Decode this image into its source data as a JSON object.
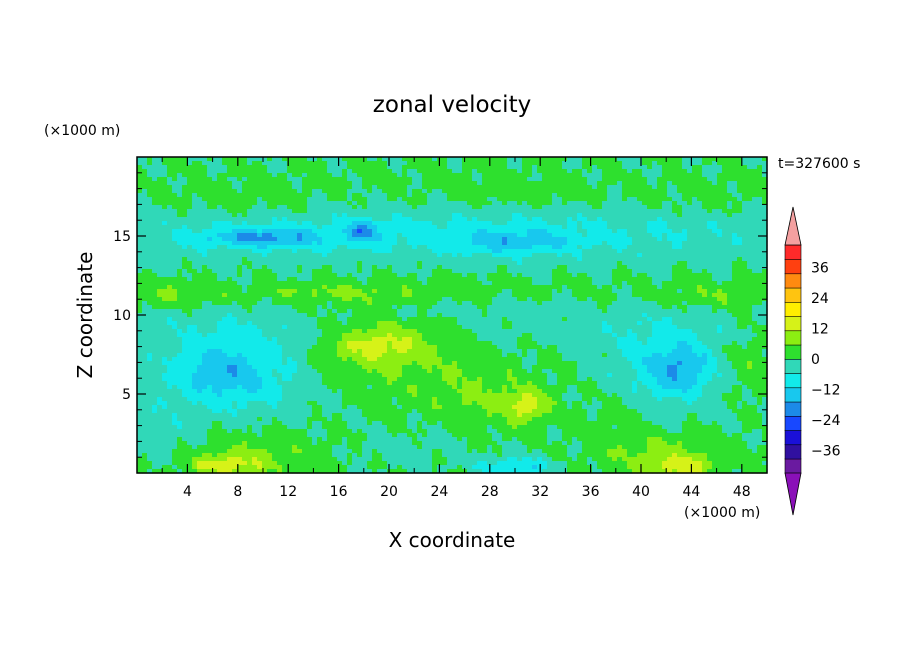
{
  "chart_data": {
    "type": "heatmap",
    "title": "zonal velocity",
    "xlabel": "X coordinate",
    "ylabel": "Z coordinate",
    "x_unit": "(×1000 m)",
    "z_unit": "(×1000 m)",
    "time_label": "t=327600 s",
    "xlim": [
      0,
      50
    ],
    "ylim": [
      0,
      20
    ],
    "x_ticks": [
      "4",
      "8",
      "12",
      "16",
      "20",
      "24",
      "28",
      "32",
      "36",
      "40",
      "44",
      "48"
    ],
    "y_ticks": [
      "5",
      "10",
      "15"
    ],
    "colorbar": {
      "tick_labels": [
        "36",
        "24",
        "12",
        "0",
        "−12",
        "−24",
        "−36"
      ],
      "levels": [
        -42,
        -36,
        -30,
        -24,
        -18,
        -12,
        -6,
        0,
        6,
        12,
        18,
        24,
        30,
        36,
        42
      ],
      "colors": [
        "#6a1aa0",
        "#3010a0",
        "#1a10d8",
        "#1848ff",
        "#1c8ae8",
        "#18c8ee",
        "#12eaea",
        "#30d8b8",
        "#2ee02e",
        "#8cee12",
        "#d6f218",
        "#ffee00",
        "#ffc410",
        "#ff8a10",
        "#ff4010",
        "#ff2a2a"
      ],
      "over_color": "#f4a0a0",
      "under_color": "#8a10b8"
    },
    "blobs": [
      {
        "x": 25,
        "z": 18.5,
        "rx": 30,
        "rz": 1.6,
        "v": 1
      },
      {
        "x": 8,
        "z": 17.2,
        "rx": 6,
        "rz": 1.2,
        "v": 3
      },
      {
        "x": 30,
        "z": 17.6,
        "rx": 6,
        "rz": 1,
        "v": 3
      },
      {
        "x": 45,
        "z": 17.4,
        "rx": 5,
        "rz": 1,
        "v": 2
      },
      {
        "x": 25,
        "z": 15.1,
        "rx": 30,
        "rz": 1.7,
        "v": -8
      },
      {
        "x": 10,
        "z": 14.9,
        "rx": 5,
        "rz": 0.6,
        "v": -14
      },
      {
        "x": 18,
        "z": 15.3,
        "rx": 1.3,
        "rz": 0.6,
        "v": -14
      },
      {
        "x": 30,
        "z": 14.6,
        "rx": 4,
        "rz": 0.7,
        "v": -10
      },
      {
        "x": 25,
        "z": 11.6,
        "rx": 30,
        "rz": 1.1,
        "v": 2
      },
      {
        "x": 3,
        "z": 11.3,
        "rx": 4,
        "rz": 0.8,
        "v": 6
      },
      {
        "x": 15,
        "z": 11.4,
        "rx": 6,
        "rz": 0.6,
        "v": 5
      },
      {
        "x": 46,
        "z": 11.2,
        "rx": 4,
        "rz": 0.7,
        "v": 5
      },
      {
        "x": 25,
        "z": 9.2,
        "rx": 30,
        "rz": 1.2,
        "v": -3
      },
      {
        "x": 8,
        "z": 6.8,
        "rx": 7,
        "rz": 3.4,
        "v": -7
      },
      {
        "x": 7,
        "z": 6.2,
        "rx": 4,
        "rz": 1.8,
        "v": -10
      },
      {
        "x": 42,
        "z": 6.8,
        "rx": 5,
        "rz": 3,
        "v": -8
      },
      {
        "x": 43,
        "z": 6.6,
        "rx": 2.5,
        "rz": 1.5,
        "v": -11
      },
      {
        "x": 20,
        "z": 7.8,
        "rx": 7,
        "rz": 2.8,
        "v": 7
      },
      {
        "x": 19,
        "z": 8.2,
        "rx": 3.5,
        "rz": 1.2,
        "v": 10
      },
      {
        "x": 28,
        "z": 4.8,
        "rx": 5,
        "rz": 1.8,
        "v": 6
      },
      {
        "x": 31,
        "z": 4.2,
        "rx": 1.6,
        "rz": 1,
        "v": 12
      },
      {
        "x": 48.5,
        "z": 7,
        "rx": 2,
        "rz": 2.2,
        "v": 5
      },
      {
        "x": 38,
        "z": 3.2,
        "rx": 3,
        "rz": 2.2,
        "v": 3
      },
      {
        "x": 10,
        "z": 1.2,
        "rx": 5.5,
        "rz": 1.6,
        "v": 6
      },
      {
        "x": 7,
        "z": 0.5,
        "rx": 3,
        "rz": 0.7,
        "v": 12
      },
      {
        "x": 42,
        "z": 1.2,
        "rx": 5,
        "rz": 1.4,
        "v": 7
      },
      {
        "x": 43,
        "z": 0.4,
        "rx": 2.5,
        "rz": 0.6,
        "v": 12
      },
      {
        "x": 21,
        "z": 1.5,
        "rx": 4,
        "rz": 1.2,
        "v": -3
      },
      {
        "x": 30,
        "z": 0.4,
        "rx": 3,
        "rz": 0.6,
        "v": -12
      },
      {
        "x": 2,
        "z": 2.5,
        "rx": 2,
        "rz": 2,
        "v": -4
      },
      {
        "x": 24,
        "z": 10.4,
        "rx": 4,
        "rz": 0.5,
        "v": -4
      },
      {
        "x": 32,
        "z": 10.6,
        "rx": 4,
        "rz": 0.6,
        "v": -3
      }
    ]
  }
}
